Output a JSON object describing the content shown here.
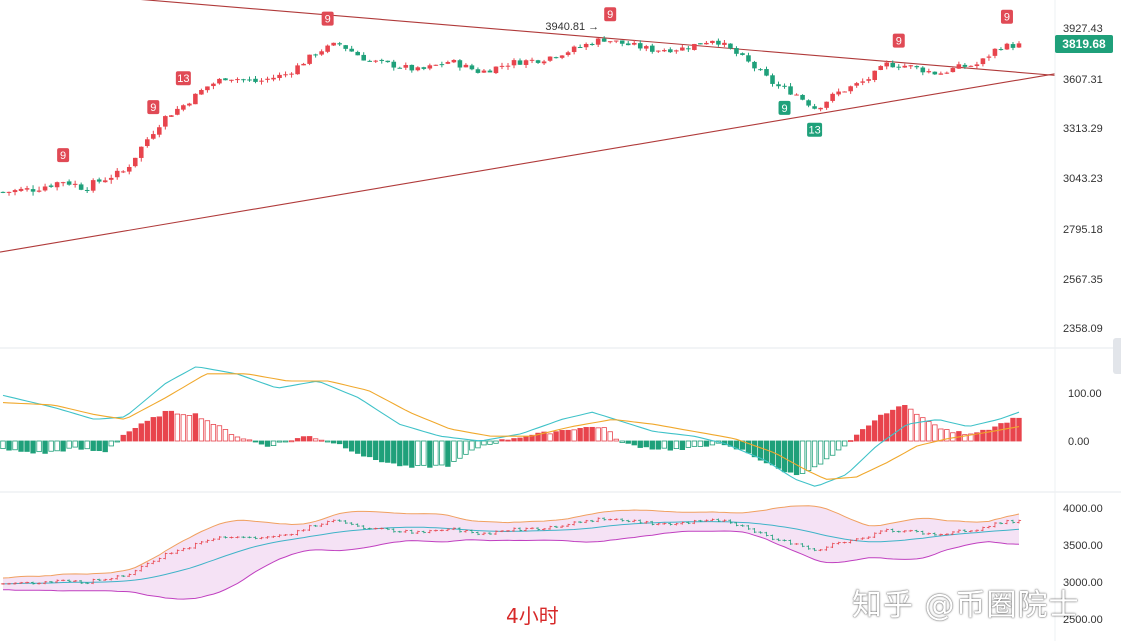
{
  "colors": {
    "up": "#e8444d",
    "down": "#1fa07a",
    "trendline": "#b03a3a",
    "macd_fast": "#3fc2c8",
    "macd_slow": "#f0a82c",
    "boll_upper": "#f0a060",
    "boll_mid": "#3fb3c8",
    "boll_lower": "#c040c0",
    "boll_fill": "#f5e2f5",
    "marker": "#e04a55",
    "marker_down": "#1fa07a"
  },
  "timeframe_label": "4小时",
  "watermark": "知乎 @币圈院士",
  "current_price_tag": "3819.68",
  "chart_data": [
    {
      "type": "candlestick",
      "panel": "price",
      "yticks": [
        "3927.43",
        "3607.31",
        "3313.29",
        "3043.23",
        "2795.18",
        "2567.35",
        "2358.09"
      ],
      "ytick_values": [
        3927.43,
        3607.31,
        3313.29,
        3043.23,
        2795.18,
        2567.35,
        2358.09
      ],
      "high_annotation": "3940.81",
      "last_price": 3819.68,
      "trendlines": [
        {
          "from": [
            0,
            2690
          ],
          "to": [
            1,
            3640
          ]
        },
        {
          "from": [
            0,
            4180
          ],
          "to": [
            1,
            3630
          ]
        }
      ],
      "close_anchors": [
        [
          0,
          2975
        ],
        [
          0.03,
          2990
        ],
        [
          0.06,
          3030
        ],
        [
          0.08,
          2995
        ],
        [
          0.1,
          3040
        ],
        [
          0.12,
          3080
        ],
        [
          0.14,
          3240
        ],
        [
          0.16,
          3380
        ],
        [
          0.18,
          3460
        ],
        [
          0.2,
          3560
        ],
        [
          0.22,
          3620
        ],
        [
          0.25,
          3590
        ],
        [
          0.28,
          3640
        ],
        [
          0.31,
          3780
        ],
        [
          0.33,
          3830
        ],
        [
          0.36,
          3720
        ],
        [
          0.38,
          3700
        ],
        [
          0.41,
          3660
        ],
        [
          0.44,
          3720
        ],
        [
          0.47,
          3650
        ],
        [
          0.5,
          3710
        ],
        [
          0.53,
          3730
        ],
        [
          0.56,
          3790
        ],
        [
          0.59,
          3860
        ],
        [
          0.61,
          3830
        ],
        [
          0.64,
          3790
        ],
        [
          0.67,
          3800
        ],
        [
          0.7,
          3860
        ],
        [
          0.73,
          3730
        ],
        [
          0.76,
          3570
        ],
        [
          0.78,
          3520
        ],
        [
          0.8,
          3430
        ],
        [
          0.82,
          3520
        ],
        [
          0.85,
          3600
        ],
        [
          0.87,
          3700
        ],
        [
          0.89,
          3690
        ],
        [
          0.92,
          3640
        ],
        [
          0.94,
          3680
        ],
        [
          0.96,
          3700
        ],
        [
          0.98,
          3810
        ],
        [
          1.0,
          3820
        ]
      ],
      "td_markers": [
        {
          "label": "9",
          "pos": 0.06,
          "kind": "up"
        },
        {
          "label": "9",
          "pos": 0.15,
          "kind": "up"
        },
        {
          "label": "13",
          "pos": 0.18,
          "kind": "up"
        },
        {
          "label": "9",
          "pos": 0.32,
          "kind": "up"
        },
        {
          "label": "9",
          "pos": 0.6,
          "kind": "up"
        },
        {
          "label": "9",
          "pos": 0.77,
          "kind": "down"
        },
        {
          "label": "13",
          "pos": 0.8,
          "kind": "down"
        },
        {
          "label": "9",
          "pos": 0.88,
          "kind": "up"
        },
        {
          "label": "9",
          "pos": 0.99,
          "kind": "up"
        }
      ]
    },
    {
      "type": "histogram+line",
      "panel": "macd",
      "yticks": [
        "100.00",
        "0.00"
      ],
      "ytick_values": [
        100,
        0
      ],
      "hist_anchors": [
        [
          0,
          -18
        ],
        [
          0.04,
          -25
        ],
        [
          0.07,
          -15
        ],
        [
          0.1,
          -22
        ],
        [
          0.12,
          15
        ],
        [
          0.16,
          60
        ],
        [
          0.19,
          55
        ],
        [
          0.23,
          10
        ],
        [
          0.26,
          -10
        ],
        [
          0.3,
          10
        ],
        [
          0.33,
          -5
        ],
        [
          0.36,
          -35
        ],
        [
          0.4,
          -55
        ],
        [
          0.44,
          -50
        ],
        [
          0.47,
          -10
        ],
        [
          0.5,
          5
        ],
        [
          0.53,
          15
        ],
        [
          0.56,
          25
        ],
        [
          0.59,
          30
        ],
        [
          0.61,
          -5
        ],
        [
          0.64,
          -15
        ],
        [
          0.67,
          -18
        ],
        [
          0.7,
          -5
        ],
        [
          0.73,
          -20
        ],
        [
          0.76,
          -55
        ],
        [
          0.78,
          -70
        ],
        [
          0.8,
          -55
        ],
        [
          0.83,
          -10
        ],
        [
          0.85,
          30
        ],
        [
          0.87,
          60
        ],
        [
          0.89,
          75
        ],
        [
          0.91,
          40
        ],
        [
          0.93,
          20
        ],
        [
          0.95,
          15
        ],
        [
          0.97,
          25
        ],
        [
          1.0,
          50
        ]
      ],
      "fast_anchors": [
        [
          0,
          95
        ],
        [
          0.05,
          70
        ],
        [
          0.09,
          45
        ],
        [
          0.12,
          50
        ],
        [
          0.16,
          120
        ],
        [
          0.19,
          155
        ],
        [
          0.23,
          140
        ],
        [
          0.27,
          110
        ],
        [
          0.31,
          125
        ],
        [
          0.35,
          90
        ],
        [
          0.39,
          35
        ],
        [
          0.43,
          10
        ],
        [
          0.47,
          0
        ],
        [
          0.51,
          15
        ],
        [
          0.55,
          45
        ],
        [
          0.58,
          60
        ],
        [
          0.61,
          40
        ],
        [
          0.64,
          20
        ],
        [
          0.68,
          10
        ],
        [
          0.71,
          -5
        ],
        [
          0.75,
          -40
        ],
        [
          0.78,
          -80
        ],
        [
          0.8,
          -95
        ],
        [
          0.83,
          -70
        ],
        [
          0.86,
          -10
        ],
        [
          0.89,
          35
        ],
        [
          0.92,
          45
        ],
        [
          0.95,
          30
        ],
        [
          0.98,
          45
        ],
        [
          1.0,
          60
        ]
      ],
      "slow_anchors": [
        [
          0,
          80
        ],
        [
          0.05,
          75
        ],
        [
          0.09,
          55
        ],
        [
          0.12,
          45
        ],
        [
          0.16,
          90
        ],
        [
          0.2,
          140
        ],
        [
          0.24,
          140
        ],
        [
          0.28,
          125
        ],
        [
          0.32,
          125
        ],
        [
          0.36,
          105
        ],
        [
          0.4,
          60
        ],
        [
          0.44,
          25
        ],
        [
          0.48,
          10
        ],
        [
          0.52,
          10
        ],
        [
          0.56,
          30
        ],
        [
          0.6,
          45
        ],
        [
          0.64,
          35
        ],
        [
          0.68,
          20
        ],
        [
          0.72,
          5
        ],
        [
          0.76,
          -25
        ],
        [
          0.79,
          -60
        ],
        [
          0.81,
          -80
        ],
        [
          0.84,
          -75
        ],
        [
          0.87,
          -45
        ],
        [
          0.9,
          -10
        ],
        [
          0.93,
          5
        ],
        [
          0.96,
          15
        ],
        [
          1.0,
          30
        ]
      ]
    },
    {
      "type": "bollinger",
      "panel": "boll",
      "yticks": [
        "4000.00",
        "3500.00",
        "3000.00",
        "2500.00"
      ],
      "ytick_values": [
        4000,
        3500,
        3000,
        2500
      ]
    }
  ]
}
